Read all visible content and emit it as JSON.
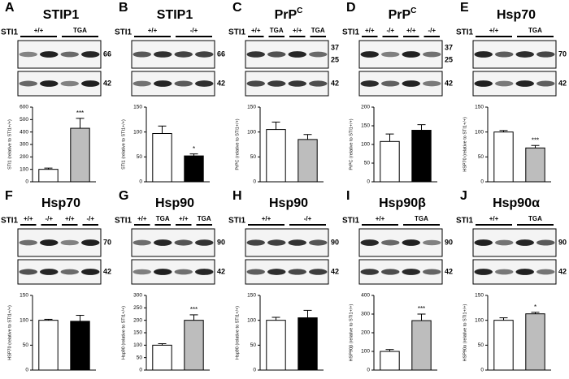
{
  "chart_data": [
    {
      "type": "bar",
      "panel": "A",
      "title": "STIP1",
      "row_label": "STI1",
      "groups": [
        "+/+",
        "TGA"
      ],
      "markers": [
        "66",
        "42"
      ],
      "y_label": "STI1 (relative to STI1+/+)",
      "values": [
        100,
        430
      ],
      "errors": [
        10,
        80
      ],
      "colors": [
        "#ffffff",
        "#bdbdbd"
      ],
      "annotation": "***",
      "ylim": [
        0,
        600
      ],
      "yticks": [
        0,
        100,
        200,
        300,
        400,
        500,
        600
      ]
    },
    {
      "type": "bar",
      "panel": "B",
      "title": "STIP1",
      "row_label": "STI1",
      "groups": [
        "+/+",
        "-/+"
      ],
      "markers": [
        "66",
        "42"
      ],
      "y_label": "STI1 (relative to STI1+/+)",
      "values": [
        97,
        52
      ],
      "errors": [
        15,
        4
      ],
      "colors": [
        "#ffffff",
        "#000000"
      ],
      "annotation": "*",
      "ylim": [
        0,
        150
      ],
      "yticks": [
        0,
        50,
        100,
        150
      ]
    },
    {
      "type": "bar",
      "panel": "C",
      "title": "PrP",
      "title_superscript": "C",
      "row_label": "STI1",
      "groups": [
        "+/+",
        "TGA",
        "+/+",
        "TGA"
      ],
      "markers": [
        "37",
        "25",
        "42"
      ],
      "y_label": "PrPC (relative to STI1+/+)",
      "values": [
        105,
        85
      ],
      "errors": [
        15,
        10
      ],
      "colors": [
        "#ffffff",
        "#bdbdbd"
      ],
      "ylim": [
        0,
        150
      ],
      "yticks": [
        0,
        50,
        100,
        150
      ]
    },
    {
      "type": "bar",
      "panel": "D",
      "title": "PrP",
      "title_superscript": "C",
      "row_label": "STI1",
      "groups": [
        "+/+",
        "-/+",
        "+/+",
        "-/+"
      ],
      "markers": [
        "37",
        "25",
        "42"
      ],
      "y_label": "PrPC (relative to STI1+/+)",
      "values": [
        108,
        138
      ],
      "errors": [
        20,
        15
      ],
      "colors": [
        "#ffffff",
        "#000000"
      ],
      "ylim": [
        0,
        200
      ],
      "yticks": [
        0,
        50,
        100,
        150,
        200
      ]
    },
    {
      "type": "bar",
      "panel": "E",
      "title": "Hsp70",
      "row_label": "STI1",
      "groups": [
        "+/+",
        "TGA"
      ],
      "markers": [
        "70",
        "42"
      ],
      "y_label": "HSP70 (relative to STI1+/+)",
      "values": [
        100,
        68
      ],
      "errors": [
        3,
        5
      ],
      "colors": [
        "#ffffff",
        "#bdbdbd"
      ],
      "annotation": "***",
      "ylim": [
        0,
        150
      ],
      "yticks": [
        0,
        50,
        100,
        150
      ]
    },
    {
      "type": "bar",
      "panel": "F",
      "title": "Hsp70",
      "row_label": "STI1",
      "groups": [
        "+/+",
        "-/+",
        "+/+",
        "-/+"
      ],
      "markers": [
        "70",
        "42"
      ],
      "y_label": "HSP70 (relative to STI1+/+)",
      "values": [
        100,
        98
      ],
      "errors": [
        2,
        12
      ],
      "colors": [
        "#ffffff",
        "#000000"
      ],
      "ylim": [
        0,
        150
      ],
      "yticks": [
        0,
        50,
        100,
        150
      ]
    },
    {
      "type": "bar",
      "panel": "G",
      "title": "Hsp90",
      "row_label": "STI1",
      "groups": [
        "+/+",
        "TGA",
        "+/+",
        "TGA"
      ],
      "markers": [
        "90",
        "42"
      ],
      "y_label": "Hsp90 (relative to STI1+/+)",
      "values": [
        100,
        200
      ],
      "errors": [
        6,
        22
      ],
      "colors": [
        "#ffffff",
        "#bdbdbd"
      ],
      "annotation": "***",
      "ylim": [
        0,
        300
      ],
      "yticks": [
        0,
        50,
        100,
        150,
        200,
        250,
        300
      ]
    },
    {
      "type": "bar",
      "panel": "H",
      "title": "Hsp90",
      "row_label": "STI1",
      "groups": [
        "+/+",
        "-/+"
      ],
      "markers": [
        "90",
        "42"
      ],
      "y_label": "Hsp90 (relative to STI1+/+)",
      "values": [
        100,
        105
      ],
      "errors": [
        6,
        15
      ],
      "colors": [
        "#ffffff",
        "#000000"
      ],
      "ylim": [
        0,
        150
      ],
      "yticks": [
        0,
        50,
        100,
        150
      ]
    },
    {
      "type": "bar",
      "panel": "I",
      "title": "Hsp90β",
      "row_label": "STI1",
      "groups": [
        "+/+",
        "TGA"
      ],
      "markers": [
        "90",
        "42"
      ],
      "y_label": "HSP90β (relative to STI1+/+)",
      "values": [
        100,
        265
      ],
      "errors": [
        10,
        35
      ],
      "colors": [
        "#ffffff",
        "#bdbdbd"
      ],
      "annotation": "***",
      "ylim": [
        0,
        400
      ],
      "yticks": [
        0,
        100,
        200,
        300,
        400
      ]
    },
    {
      "type": "bar",
      "panel": "J",
      "title": "Hsp90α",
      "row_label": "STI1",
      "groups": [
        "+/+",
        "TGA"
      ],
      "markers": [
        "90",
        "42"
      ],
      "y_label": "HSP90α (relative to STI1+/+)",
      "values": [
        100,
        113
      ],
      "errors": [
        5,
        3
      ],
      "colors": [
        "#ffffff",
        "#bdbdbd"
      ],
      "annotation": "*",
      "ylim": [
        0,
        150
      ],
      "yticks": [
        0,
        50,
        100,
        150
      ]
    }
  ]
}
